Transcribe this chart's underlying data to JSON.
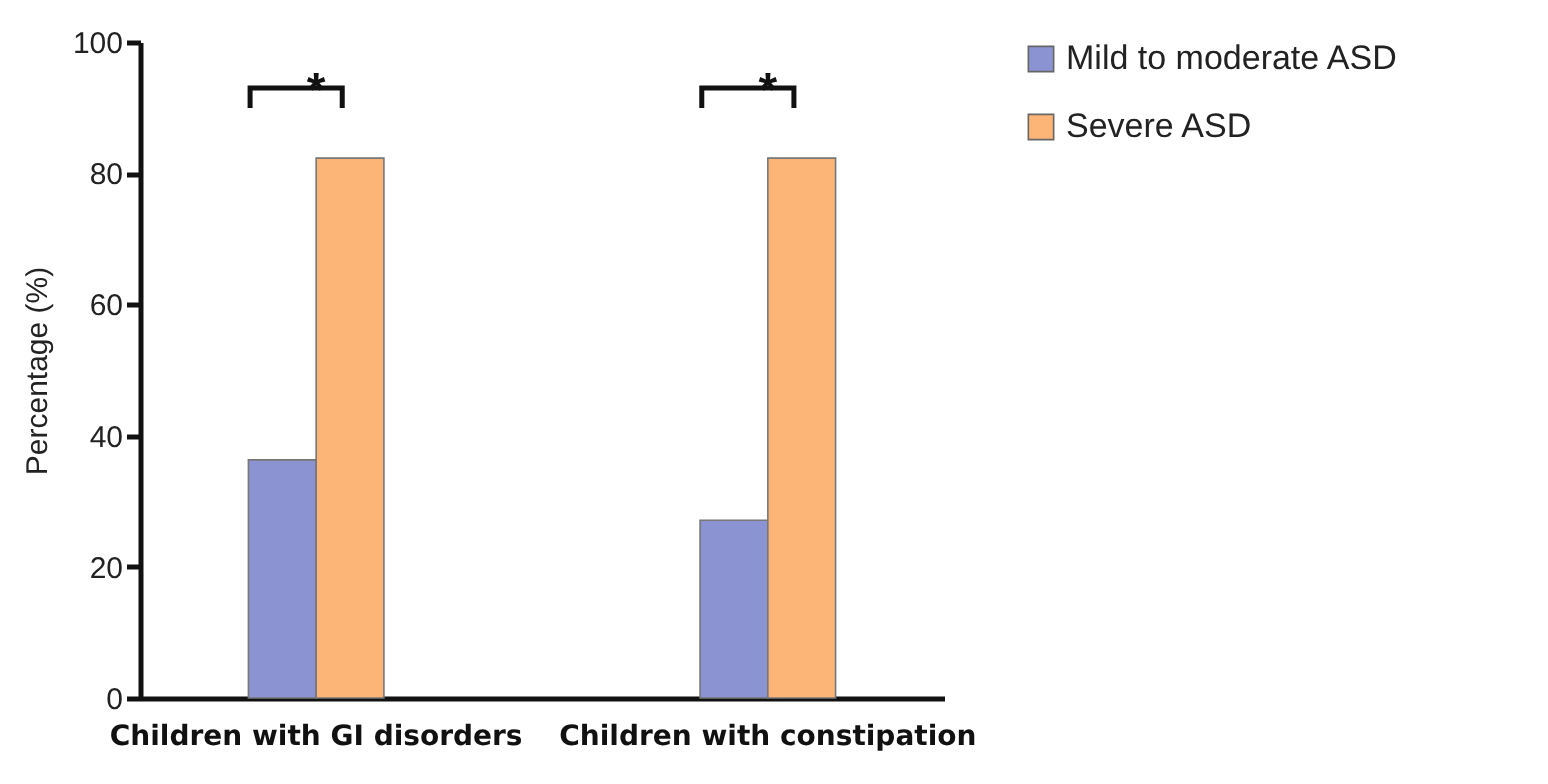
{
  "chart_data": {
    "type": "bar",
    "ylabel": "Percentage (%)",
    "categories": [
      "Children with GI disorders",
      "Children with constipation"
    ],
    "series": [
      {
        "name": "Mild to moderate ASD",
        "color": "#8b93d3",
        "values": [
          36.3,
          27.1
        ]
      },
      {
        "name": "Severe ASD",
        "color": "#fdb577",
        "values": [
          82.3,
          82.3
        ]
      }
    ],
    "ylim": [
      0,
      100
    ],
    "yticks": [
      0,
      20,
      40,
      60,
      80,
      100
    ],
    "grid": false,
    "legend": "top right",
    "annotations": [
      "*",
      "*"
    ]
  }
}
